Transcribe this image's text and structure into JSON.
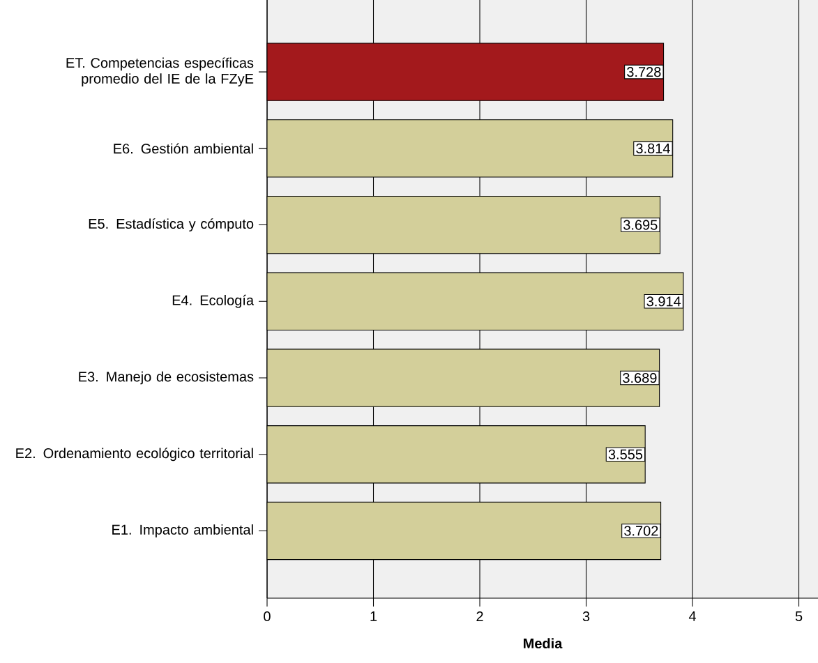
{
  "chart_data": {
    "type": "bar",
    "orientation": "horizontal",
    "categories": [
      "ET. Competencias específicas promedio del IE de la FZyE",
      "E6. Gestión ambiental",
      "E5. Estadística y cómputo",
      "E4. Ecología",
      "E3. Manejo de ecosistemas",
      "E2. Ordenamiento ecológico territorial",
      "E1. Impacto ambiental"
    ],
    "values": [
      3.728,
      3.814,
      3.695,
      3.914,
      3.689,
      3.555,
      3.702
    ],
    "colors": [
      "#a3191c",
      "#d3cf9a",
      "#d3cf9a",
      "#d3cf9a",
      "#d3cf9a",
      "#d3cf9a",
      "#d3cf9a"
    ],
    "xlim": [
      0,
      5.18
    ],
    "xticks": [
      0,
      1,
      2,
      3,
      4,
      5
    ],
    "xlabel": "Media",
    "grid": "x",
    "data_labels": true
  }
}
